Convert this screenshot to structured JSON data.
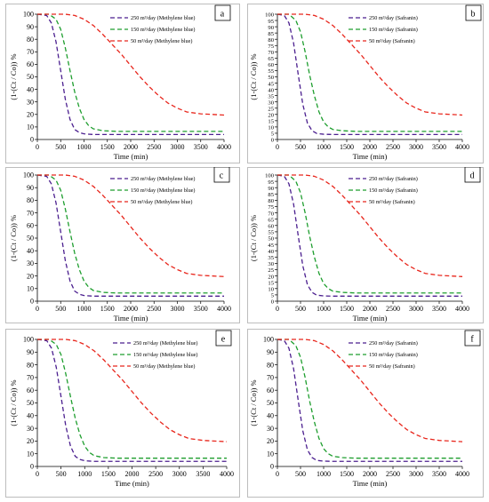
{
  "chart_data": [
    {
      "type": "line",
      "panel": "a",
      "xlabel": "Time (min)",
      "ylabel": "(1-(Ct / Co)) %",
      "xlim": [
        0,
        4000
      ],
      "ylim": [
        0,
        100
      ],
      "xticks": [
        "0",
        "500",
        "1000",
        "1500",
        "2000",
        "2500",
        "3000",
        "3500",
        "4000"
      ],
      "yticks": [
        "0",
        "10",
        "20",
        "30",
        "40",
        "50",
        "60",
        "70",
        "80",
        "90",
        "100"
      ],
      "legend_position": "top-right",
      "grid": false,
      "series": [
        {
          "name": "250 m³/day (Methylene blue)",
          "color": "#4b1f8f",
          "x": [
            0,
            200,
            300,
            400,
            500,
            600,
            700,
            800,
            900,
            1000,
            1200,
            1500,
            2000,
            3000,
            4000
          ],
          "y": [
            100,
            99,
            93,
            78,
            55,
            32,
            16,
            8,
            5.5,
            4.5,
            4,
            4,
            4,
            4,
            4
          ]
        },
        {
          "name": "150 m³/day (Methylene blue)",
          "color": "#1e9e2e",
          "x": [
            0,
            250,
            400,
            500,
            600,
            700,
            800,
            900,
            1000,
            1100,
            1200,
            1400,
            1700,
            2000,
            3000,
            4000
          ],
          "y": [
            100,
            100,
            96,
            88,
            73,
            55,
            38,
            25,
            16,
            11,
            8.5,
            7,
            6.5,
            6.5,
            6.5,
            6.5
          ]
        },
        {
          "name": "50 m³/day (Methylene blue)",
          "color": "#e8261c",
          "x": [
            0,
            600,
            800,
            1000,
            1200,
            1400,
            1600,
            1800,
            2000,
            2200,
            2400,
            2600,
            2800,
            3000,
            3200,
            3500,
            4000
          ],
          "y": [
            100,
            100,
            99,
            96,
            91,
            84,
            76,
            68,
            59,
            50,
            42,
            35,
            29,
            25,
            22,
            20.5,
            19.5
          ]
        }
      ]
    },
    {
      "type": "line",
      "panel": "b",
      "xlabel": "Time (min)",
      "ylabel": "(1-(Ct / Co)) %",
      "xlim": [
        0,
        4000
      ],
      "ylim": [
        0,
        100
      ],
      "xticks": [
        "0",
        "500",
        "1000",
        "1500",
        "2000",
        "2500",
        "3000",
        "3500",
        "4000"
      ],
      "yticks": [
        "0",
        "5",
        "10",
        "15",
        "20",
        "25",
        "30",
        "35",
        "40",
        "45",
        "50",
        "55",
        "60",
        "65",
        "70",
        "75",
        "80",
        "85",
        "90",
        "95",
        "100"
      ],
      "legend_position": "top-right",
      "grid": false,
      "series": [
        {
          "name": "250 m³/day (Safranin)",
          "color": "#4b1f8f",
          "x": [
            0,
            150,
            250,
            350,
            450,
            550,
            650,
            750,
            850,
            1000,
            1200,
            1500,
            2000,
            3000,
            4000
          ],
          "y": [
            100,
            99,
            93,
            77,
            52,
            28,
            13,
            7,
            4.8,
            4.2,
            4,
            4,
            4,
            4,
            4
          ]
        },
        {
          "name": "150 m³/day (Safranin)",
          "color": "#1e9e2e",
          "x": [
            0,
            250,
            400,
            500,
            600,
            700,
            800,
            900,
            1000,
            1100,
            1200,
            1400,
            1700,
            2000,
            3000,
            4000
          ],
          "y": [
            100,
            100,
            95,
            86,
            70,
            51,
            35,
            22,
            14,
            10,
            8,
            7,
            6.5,
            6.5,
            6.5,
            6.5
          ]
        },
        {
          "name": "50 m³/day (Safranin)",
          "color": "#e8261c",
          "x": [
            0,
            600,
            800,
            1000,
            1200,
            1400,
            1600,
            1800,
            2000,
            2200,
            2400,
            2600,
            2800,
            3000,
            3200,
            3500,
            4000
          ],
          "y": [
            100,
            100,
            99,
            96,
            91,
            84,
            76,
            68,
            59,
            50,
            42,
            35,
            29,
            25,
            22,
            20.5,
            19.5
          ]
        }
      ]
    },
    {
      "type": "line",
      "panel": "c",
      "xlabel": "Time (min)",
      "ylabel": "(1-(Ct / Co)) %",
      "xlim": [
        0,
        4000
      ],
      "ylim": [
        0,
        100
      ],
      "xticks": [
        "0",
        "500",
        "1000",
        "1500",
        "2000",
        "2500",
        "3000",
        "3500",
        "4000"
      ],
      "yticks": [
        "0",
        "10",
        "20",
        "30",
        "40",
        "50",
        "60",
        "70",
        "80",
        "90",
        "100"
      ],
      "legend_position": "top-right",
      "grid": false,
      "series": [
        {
          "name": "250 m³/day (Methylene blue)",
          "color": "#4b1f8f",
          "x": [
            0,
            200,
            300,
            400,
            500,
            600,
            700,
            800,
            900,
            1000,
            1200,
            1500,
            2000,
            3000,
            4000
          ],
          "y": [
            100,
            99,
            93,
            78,
            55,
            32,
            16,
            8,
            5.5,
            4.5,
            4,
            4,
            4,
            4,
            4
          ]
        },
        {
          "name": "150 m³/day (Methylene blue)",
          "color": "#1e9e2e",
          "x": [
            0,
            250,
            400,
            500,
            600,
            700,
            800,
            900,
            1000,
            1100,
            1200,
            1400,
            1700,
            2000,
            3000,
            4000
          ],
          "y": [
            100,
            100,
            96,
            88,
            73,
            55,
            38,
            25,
            16,
            11,
            8.5,
            7,
            6.5,
            6.5,
            6.5,
            6.5
          ]
        },
        {
          "name": "50 m³/day (Methylene blue)",
          "color": "#e8261c",
          "x": [
            0,
            600,
            800,
            1000,
            1200,
            1400,
            1600,
            1800,
            2000,
            2200,
            2400,
            2600,
            2800,
            3000,
            3200,
            3500,
            4000
          ],
          "y": [
            100,
            100,
            99,
            96,
            91,
            84,
            76,
            68,
            59,
            50,
            42,
            35,
            29,
            25,
            22,
            20.5,
            19.5
          ]
        }
      ]
    },
    {
      "type": "line",
      "panel": "d",
      "xlabel": "Time (min)",
      "ylabel": "(1-(Ct / Co)) %",
      "xlim": [
        0,
        4000
      ],
      "ylim": [
        0,
        100
      ],
      "xticks": [
        "0",
        "500",
        "1000",
        "1500",
        "2000",
        "2500",
        "3000",
        "3500",
        "4000"
      ],
      "yticks": [
        "0",
        "5",
        "10",
        "15",
        "20",
        "25",
        "30",
        "35",
        "40",
        "45",
        "50",
        "55",
        "60",
        "65",
        "70",
        "75",
        "80",
        "85",
        "90",
        "95",
        "100"
      ],
      "legend_position": "top-right",
      "grid": false,
      "series": [
        {
          "name": "250 m³/day (Safranin)",
          "color": "#4b1f8f",
          "x": [
            0,
            150,
            250,
            350,
            450,
            550,
            650,
            750,
            850,
            1000,
            1200,
            1500,
            2000,
            3000,
            4000
          ],
          "y": [
            100,
            99,
            93,
            77,
            52,
            28,
            13,
            7,
            4.8,
            4.2,
            4,
            4,
            4,
            4,
            4
          ]
        },
        {
          "name": "150 m³/day (Safranin)",
          "color": "#1e9e2e",
          "x": [
            0,
            250,
            400,
            500,
            600,
            700,
            800,
            900,
            1000,
            1100,
            1200,
            1400,
            1700,
            2000,
            3000,
            4000
          ],
          "y": [
            100,
            100,
            95,
            86,
            70,
            51,
            35,
            22,
            14,
            10,
            8,
            7,
            6.5,
            6.5,
            6.5,
            6.5
          ]
        },
        {
          "name": "50 m³/day (Safranin)",
          "color": "#e8261c",
          "x": [
            0,
            600,
            800,
            1000,
            1200,
            1400,
            1600,
            1800,
            2000,
            2200,
            2400,
            2600,
            2800,
            3000,
            3200,
            3500,
            4000
          ],
          "y": [
            100,
            100,
            99,
            96,
            91,
            84,
            76,
            68,
            59,
            50,
            42,
            35,
            29,
            25,
            22,
            20.5,
            19.5
          ]
        }
      ]
    },
    {
      "type": "line",
      "panel": "e",
      "xlabel": "Time (min)",
      "ylabel": "(1-(Ct / Co)) %",
      "xlim": [
        0,
        4000
      ],
      "ylim": [
        0,
        100
      ],
      "xticks": [
        "0",
        "500",
        "1000",
        "1500",
        "2000",
        "2500",
        "3000",
        "3500",
        "4000"
      ],
      "yticks": [
        "0",
        "10",
        "20",
        "30",
        "40",
        "50",
        "60",
        "70",
        "80",
        "90",
        "100"
      ],
      "legend_position": "top-right",
      "grid": false,
      "series": [
        {
          "name": "250 m³/day (Methylene blue)",
          "color": "#4b1f8f",
          "x": [
            0,
            200,
            300,
            400,
            500,
            600,
            700,
            800,
            900,
            1000,
            1200,
            1500,
            2000,
            3000,
            4000
          ],
          "y": [
            100,
            99,
            93,
            78,
            55,
            32,
            16,
            8,
            5.5,
            4.5,
            4,
            4,
            4,
            4,
            4
          ]
        },
        {
          "name": "150 m³/day (Methylene blue)",
          "color": "#1e9e2e",
          "x": [
            0,
            250,
            400,
            500,
            600,
            700,
            800,
            900,
            1000,
            1100,
            1200,
            1400,
            1700,
            2000,
            3000,
            4000
          ],
          "y": [
            100,
            100,
            96,
            88,
            73,
            55,
            38,
            25,
            16,
            11,
            8.5,
            7,
            6.5,
            6.5,
            6.5,
            6.5
          ]
        },
        {
          "name": "50 m³/day (Methylene blue)",
          "color": "#e8261c",
          "x": [
            0,
            600,
            800,
            1000,
            1200,
            1400,
            1600,
            1800,
            2000,
            2200,
            2400,
            2600,
            2800,
            3000,
            3200,
            3500,
            4000
          ],
          "y": [
            100,
            100,
            99,
            96,
            91,
            84,
            76,
            68,
            59,
            50,
            42,
            35,
            29,
            25,
            22,
            20.5,
            19.5
          ]
        }
      ]
    },
    {
      "type": "line",
      "panel": "f",
      "xlabel": "Time (min)",
      "ylabel": "(1-(Ct / Co)) %",
      "xlim": [
        0,
        4000
      ],
      "ylim": [
        0,
        100
      ],
      "xticks": [
        "0",
        "500",
        "1000",
        "1500",
        "2000",
        "2500",
        "3000",
        "3500",
        "4000"
      ],
      "yticks": [
        "0",
        "10",
        "20",
        "30",
        "40",
        "50",
        "60",
        "70",
        "80",
        "90",
        "100"
      ],
      "legend_position": "top-right",
      "grid": false,
      "series": [
        {
          "name": "250 m³/day (Safranin)",
          "color": "#4b1f8f",
          "x": [
            0,
            150,
            250,
            350,
            450,
            550,
            650,
            750,
            850,
            1000,
            1200,
            1500,
            2000,
            3000,
            4000
          ],
          "y": [
            100,
            99,
            93,
            77,
            52,
            28,
            13,
            7,
            4.8,
            4.2,
            4,
            4,
            4,
            4,
            4
          ]
        },
        {
          "name": "150 m³/day (Safranin)",
          "color": "#1e9e2e",
          "x": [
            0,
            250,
            400,
            500,
            600,
            700,
            800,
            900,
            1000,
            1100,
            1200,
            1400,
            1700,
            2000,
            3000,
            4000
          ],
          "y": [
            100,
            100,
            95,
            86,
            70,
            51,
            35,
            22,
            14,
            10,
            8,
            7,
            6.5,
            6.5,
            6.5,
            6.5
          ]
        },
        {
          "name": "50 m³/day (Safranin)",
          "color": "#e8261c",
          "x": [
            0,
            600,
            800,
            1000,
            1200,
            1400,
            1600,
            1800,
            2000,
            2200,
            2400,
            2600,
            2800,
            3000,
            3200,
            3500,
            4000
          ],
          "y": [
            100,
            100,
            99,
            96,
            91,
            84,
            76,
            68,
            59,
            50,
            42,
            35,
            29,
            25,
            22,
            20.5,
            19.5
          ]
        }
      ]
    }
  ]
}
